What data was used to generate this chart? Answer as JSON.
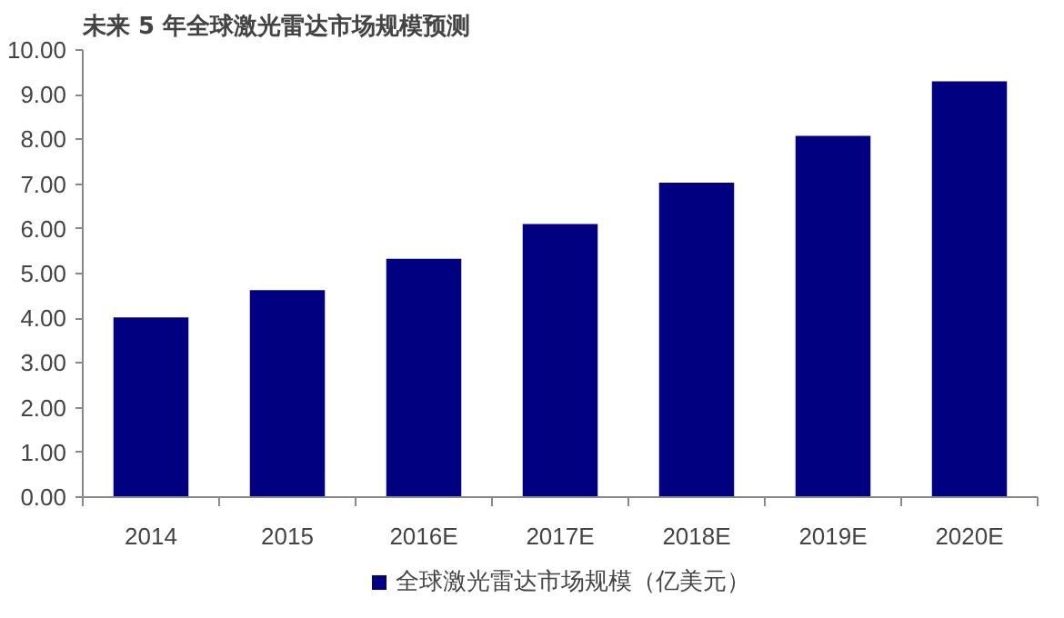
{
  "chart_data": {
    "type": "bar",
    "title": "未来 5 年全球激光雷达市场规模预测",
    "categories": [
      "2014",
      "2015",
      "2016E",
      "2017E",
      "2018E",
      "2019E",
      "2020E"
    ],
    "series": [
      {
        "name": "全球激光雷达市场规模（亿美元）",
        "color": "#000080",
        "values": [
          4.02,
          4.63,
          5.33,
          6.11,
          7.03,
          8.08,
          9.3
        ]
      }
    ],
    "ylim": [
      0,
      10
    ],
    "yticks": [
      {
        "value": 0,
        "label": "0.00"
      },
      {
        "value": 1,
        "label": "1.00"
      },
      {
        "value": 2,
        "label": "2.00"
      },
      {
        "value": 3,
        "label": "3.00"
      },
      {
        "value": 4,
        "label": "4.00"
      },
      {
        "value": 5,
        "label": "5.00"
      },
      {
        "value": 6,
        "label": "6.00"
      },
      {
        "value": 7,
        "label": "7.00"
      },
      {
        "value": 8,
        "label": "8.00"
      },
      {
        "value": 9,
        "label": "9.00"
      },
      {
        "value": 10,
        "label": "10.00"
      }
    ],
    "grid": false,
    "legend": "bottom"
  }
}
